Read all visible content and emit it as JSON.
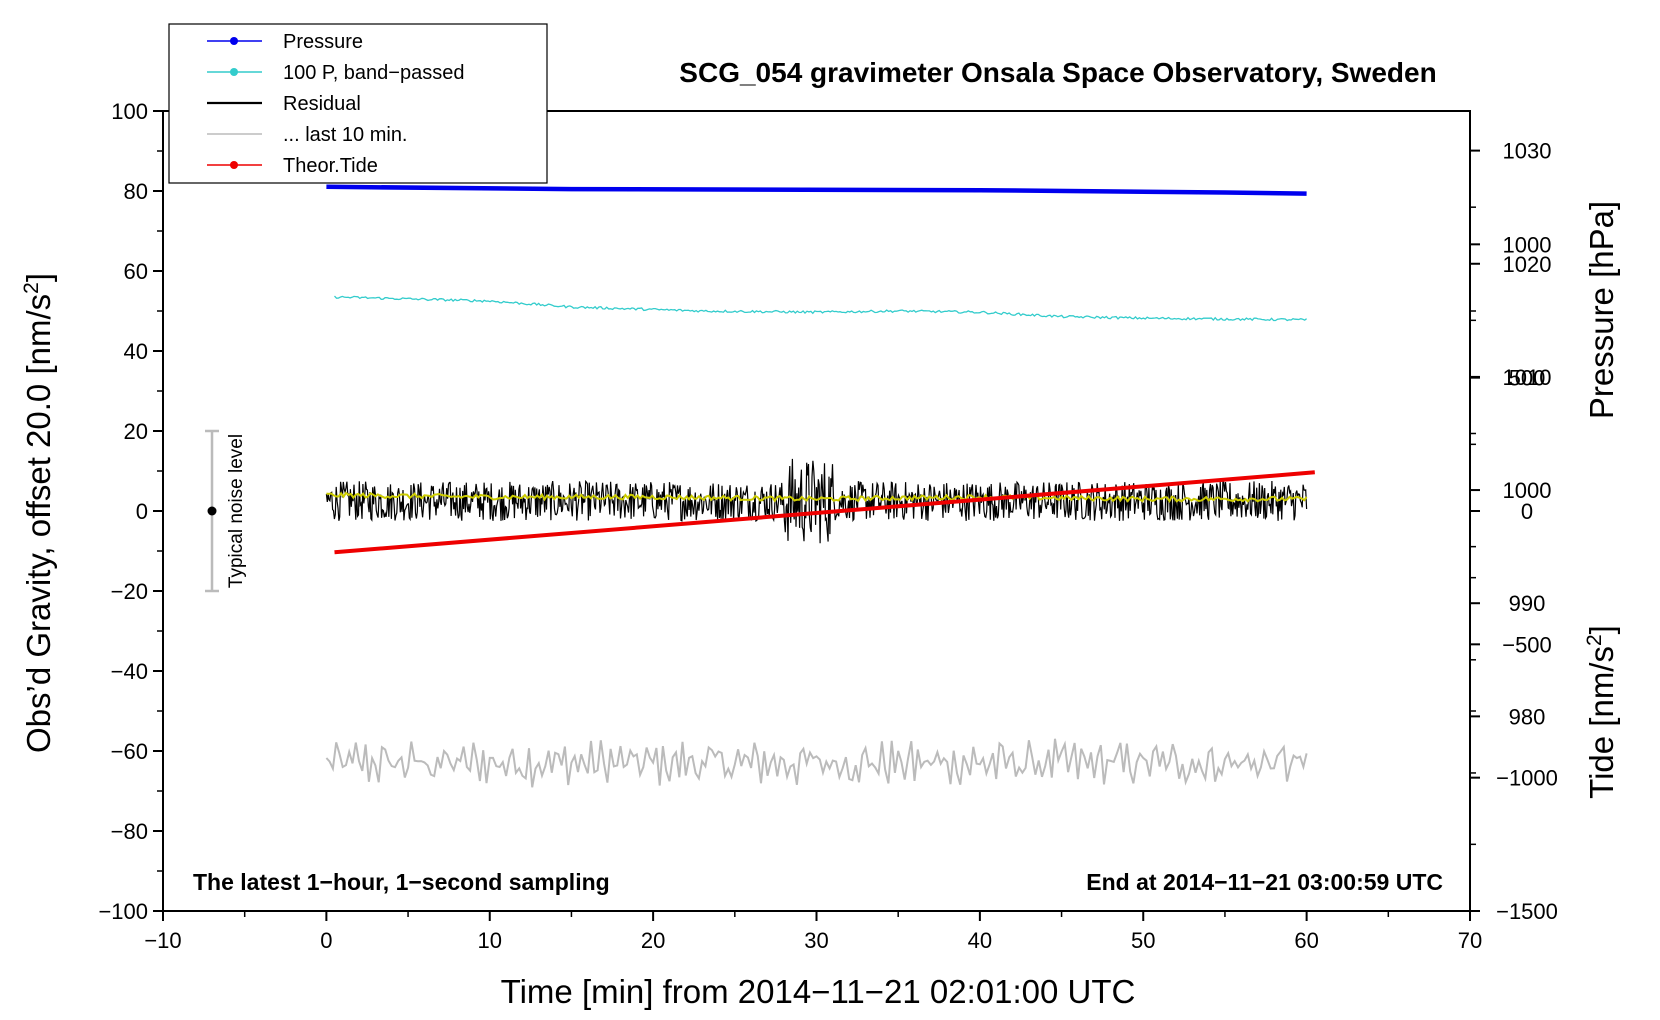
{
  "chart_data": {
    "type": "line",
    "title": "SCG_054 gravimeter Onsala Space Observatory, Sweden",
    "xlabel": "Time [min] from 2014−11−21 02:01:00 UTC",
    "ylabel_left": "Obs’d Gravity, offset 20.0 [nm/s²]",
    "ylabel_right_pressure": "Pressure [hPa]",
    "ylabel_right_tide": "Tide [nm/s²]",
    "footer_left": "The latest 1−hour, 1−second sampling",
    "footer_right": "End at 2014−11−21 03:00:59 UTC",
    "noise_label": "Typical noise level",
    "xlim": [
      -10,
      70
    ],
    "ylim": [
      -100,
      100
    ],
    "pressure_lim": [
      962.8,
      1033.5
    ],
    "tide_lim": [
      -1500,
      1500
    ],
    "x_ticks": [
      -10,
      0,
      10,
      20,
      30,
      40,
      50,
      60,
      70
    ],
    "x_tick_labels": [
      "−10",
      "0",
      "10",
      "20",
      "30",
      "40",
      "50",
      "60",
      "70"
    ],
    "y_ticks": [
      -100,
      -80,
      -60,
      -40,
      -20,
      0,
      20,
      40,
      60,
      80,
      100
    ],
    "y_tick_labels": [
      "−100",
      "−80",
      "−60",
      "−40",
      "−20",
      "0",
      "20",
      "40",
      "60",
      "80",
      "100"
    ],
    "pressure_ticks": [
      980,
      990,
      1000,
      1010,
      1020,
      1030
    ],
    "pressure_tick_labels": [
      "980",
      "990",
      "1000",
      "1010",
      "1020",
      "1030"
    ],
    "tide_ticks": [
      -1500,
      -1000,
      -500,
      0,
      500,
      1000
    ],
    "tide_tick_labels": [
      "−1500",
      "−1000",
      "−500",
      "0",
      "500",
      "1000"
    ],
    "noise_range": [
      -20,
      20
    ],
    "noise_x": -7,
    "legend": [
      {
        "label": "Pressure",
        "color": "#0000ee",
        "marker": true
      },
      {
        "label": "100 P, band−passed",
        "color": "#33cccc",
        "marker": true
      },
      {
        "label": "Residual",
        "color": "#000000",
        "marker": false
      },
      {
        "label": "... last 10 min.",
        "color": "#bbbbbb",
        "marker": false
      },
      {
        "label": "Theor.Tide",
        "color": "#ee0000",
        "marker": true
      }
    ],
    "series": [
      {
        "name": "Pressure",
        "axis": "pressure",
        "color": "#0000ee",
        "x": [
          0,
          15,
          40,
          55,
          60
        ],
        "y": [
          1026.8,
          1026.6,
          1026.5,
          1026.3,
          1026.2
        ]
      },
      {
        "name": "100 P, band−passed",
        "axis": "left",
        "color": "#33cccc",
        "x": [
          0.5,
          10,
          15,
          23,
          30,
          35,
          40,
          45,
          50,
          55,
          60
        ],
        "y": [
          53.5,
          52.5,
          51,
          50,
          49.7,
          50,
          49.7,
          48.6,
          48.2,
          48,
          47.8
        ]
      },
      {
        "name": "Residual",
        "axis": "left",
        "color": "#000000",
        "amplitude": 5,
        "offset": 2.5,
        "x_range": [
          0,
          60
        ]
      },
      {
        "name": "Residual mean",
        "axis": "left",
        "color": "#cccc00",
        "x": [
          0,
          10,
          20,
          30,
          40,
          50,
          60
        ],
        "y": [
          4,
          3.5,
          3.5,
          3,
          3.5,
          3,
          3
        ]
      },
      {
        "name": "... last 10 min.",
        "axis": "left",
        "color": "#bbbbbb",
        "center": -63,
        "amplitude": 5,
        "x_range": [
          0,
          60
        ]
      },
      {
        "name": "Theor.Tide",
        "axis": "tide",
        "color": "#ee0000",
        "x": [
          0.5,
          60.5
        ],
        "y": [
          -155,
          145
        ]
      }
    ]
  }
}
